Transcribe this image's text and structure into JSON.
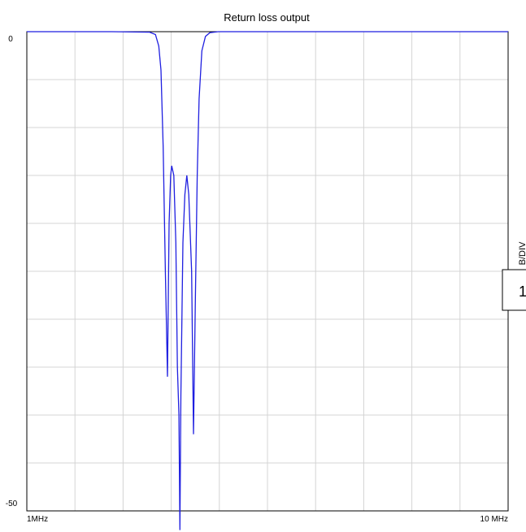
{
  "chart_data": {
    "type": "line",
    "title": "Return loss output",
    "ylabel": "dB/DIV",
    "ylabel_visible": "B/DIV",
    "ylim": [
      -50,
      0
    ],
    "y_tick_labels": [
      "0",
      "-50"
    ],
    "x_scale": "log",
    "xlim_mhz": [
      1,
      10
    ],
    "x_tick_labels": [
      "1MHz",
      "10 MHz"
    ],
    "grid": true,
    "x_divisions": 10,
    "y_divisions": 10,
    "colors": {
      "trace": "#1f1fe0",
      "grid": "#d4d4d4",
      "frame": "#000000"
    },
    "series": [
      {
        "points_mhz_db": [
          [
            1.0,
            0
          ],
          [
            1.5,
            0
          ],
          [
            1.8,
            -0.05
          ],
          [
            1.85,
            -0.3
          ],
          [
            1.88,
            -1.5
          ],
          [
            1.9,
            -4
          ],
          [
            1.92,
            -12
          ],
          [
            1.94,
            -25
          ],
          [
            1.96,
            -36
          ],
          [
            1.975,
            -20
          ],
          [
            1.99,
            -15
          ],
          [
            2.0,
            -14
          ],
          [
            2.02,
            -15
          ],
          [
            2.04,
            -22
          ],
          [
            2.055,
            -35
          ],
          [
            2.07,
            -40
          ],
          [
            2.08,
            -52
          ],
          [
            2.09,
            -38
          ],
          [
            2.11,
            -22
          ],
          [
            2.13,
            -17
          ],
          [
            2.15,
            -15
          ],
          [
            2.17,
            -17
          ],
          [
            2.2,
            -25
          ],
          [
            2.22,
            -42
          ],
          [
            2.24,
            -28
          ],
          [
            2.26,
            -15
          ],
          [
            2.28,
            -7
          ],
          [
            2.31,
            -2
          ],
          [
            2.35,
            -0.5
          ],
          [
            2.4,
            -0.1
          ],
          [
            2.5,
            0
          ],
          [
            10.0,
            0
          ]
        ]
      }
    ]
  },
  "side_box": {
    "label": "1"
  }
}
